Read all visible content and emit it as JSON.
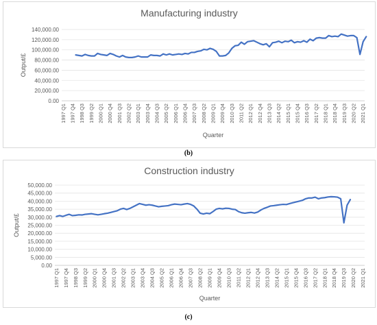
{
  "chart_data": [
    {
      "type": "line",
      "panel": "b",
      "title": "Manufacturing industry",
      "xlabel": "Quarter",
      "ylabel": "Output/£",
      "ylim": [
        0,
        140000
      ],
      "ytick_labels": [
        "0.00",
        "20,000.00",
        "40,000.00",
        "60,000.00",
        "80,000.00",
        "100,000.00",
        "120,000.00",
        "140,000.00"
      ],
      "xtick_labels": [
        "1997 Q1",
        "1997 Q4",
        "1998 Q3",
        "1999 Q2",
        "2000 Q1",
        "2000 Q4",
        "2001 Q3",
        "2002 Q2",
        "2003 Q1",
        "2003 Q4",
        "2004 Q3",
        "2005 Q2",
        "2006 Q1",
        "2006 Q4",
        "2007 Q3",
        "2008 Q2",
        "2009 Q1",
        "2009 Q4",
        "2010 Q3",
        "2011 Q2",
        "2012 Q1",
        "2012 Q4",
        "2013 Q3",
        "2014 Q2",
        "2015 Q1",
        "2015 Q4",
        "2016 Q3",
        "2017 Q2",
        "2018 Q1",
        "2018 Q4",
        "2019 Q3",
        "2020 Q2",
        "2021 Q1"
      ],
      "grid": true,
      "legend": "none",
      "color": "#4472c4",
      "series": [
        {
          "x_start": "1998 Q1",
          "values": [
            90000,
            89000,
            88000,
            91000,
            89000,
            88000,
            88000,
            93000,
            91000,
            90000,
            89000,
            93000,
            91000,
            88000,
            86000,
            89000,
            86000,
            85000,
            85000,
            86000,
            88000,
            86000,
            86000,
            86000,
            90000,
            89000,
            89000,
            88000,
            92000,
            90000,
            92000,
            90000,
            91000,
            92000,
            91000,
            93000,
            92000,
            95000,
            95000,
            97000,
            98000,
            101000,
            100000,
            103000,
            101000,
            97000,
            88000,
            88000,
            89000,
            94000,
            103000,
            108000,
            109000,
            115000,
            111000,
            116000,
            117000,
            118000,
            115000,
            112000,
            110000,
            112000,
            106000,
            114000,
            115000,
            117000,
            114000,
            117000,
            116000,
            119000,
            114000,
            116000,
            115000,
            118000,
            115000,
            121000,
            118000,
            123000,
            124000,
            123000,
            123000,
            128000,
            126000,
            127000,
            126000,
            131000,
            129000,
            127000,
            128000,
            128000,
            124000,
            91000,
            116000,
            126000
          ]
        }
      ]
    },
    {
      "type": "line",
      "panel": "c",
      "title": "Construction industry",
      "xlabel": "Quarter",
      "ylabel": "Output/£",
      "ylim": [
        0,
        50000
      ],
      "ytick_labels": [
        "0.00",
        "5,000.00",
        "10,000.00",
        "15,000.00",
        "20,000.00",
        "25,000.00",
        "30,000.00",
        "35,000.00",
        "40,000.00",
        "45,000.00",
        "50,000.00"
      ],
      "xtick_labels": [
        "1997 Q1",
        "1997 Q4",
        "1998 Q3",
        "1999 Q2",
        "2000 Q1",
        "2000 Q4",
        "2001 Q3",
        "2002 Q2",
        "2003 Q1",
        "2003 Q4",
        "2004 Q3",
        "2005 Q2",
        "2006 Q1",
        "2006 Q4",
        "2007 Q3",
        "2008 Q2",
        "2009 Q1",
        "2009 Q4",
        "2010 Q3",
        "2011 Q2",
        "2012 Q1",
        "2012 Q4",
        "2013 Q3",
        "2014 Q2",
        "2015 Q1",
        "2015 Q4",
        "2016 Q3",
        "2017 Q2",
        "2018 Q1",
        "2018 Q4",
        "2019 Q3",
        "2020 Q2",
        "2021 Q1"
      ],
      "grid": true,
      "legend": "none",
      "color": "#4472c4",
      "series": [
        {
          "x_start": "1997 Q1",
          "values": [
            30500,
            31000,
            30500,
            31200,
            31800,
            31000,
            31200,
            31500,
            31400,
            31800,
            32000,
            32200,
            31800,
            31500,
            31800,
            32200,
            32500,
            33000,
            33500,
            34000,
            35000,
            35500,
            34800,
            35500,
            36500,
            37500,
            38500,
            38000,
            37500,
            37800,
            37500,
            37000,
            36500,
            36800,
            37000,
            37200,
            37800,
            38200,
            38000,
            37800,
            38200,
            38500,
            38000,
            37000,
            35000,
            32500,
            32000,
            32500,
            32200,
            33500,
            35000,
            35500,
            35200,
            35600,
            35500,
            35000,
            34800,
            33500,
            32800,
            32500,
            32800,
            33000,
            32600,
            33200,
            34500,
            35500,
            36200,
            37000,
            37200,
            37500,
            37800,
            38000,
            37900,
            38500,
            39000,
            39500,
            40000,
            40500,
            41500,
            42000,
            42000,
            42500,
            41500,
            42000,
            42200,
            42600,
            42800,
            42700,
            42500,
            41500,
            26500,
            37500,
            41000
          ]
        }
      ]
    }
  ],
  "captions": [
    "(b)",
    "(c)"
  ]
}
